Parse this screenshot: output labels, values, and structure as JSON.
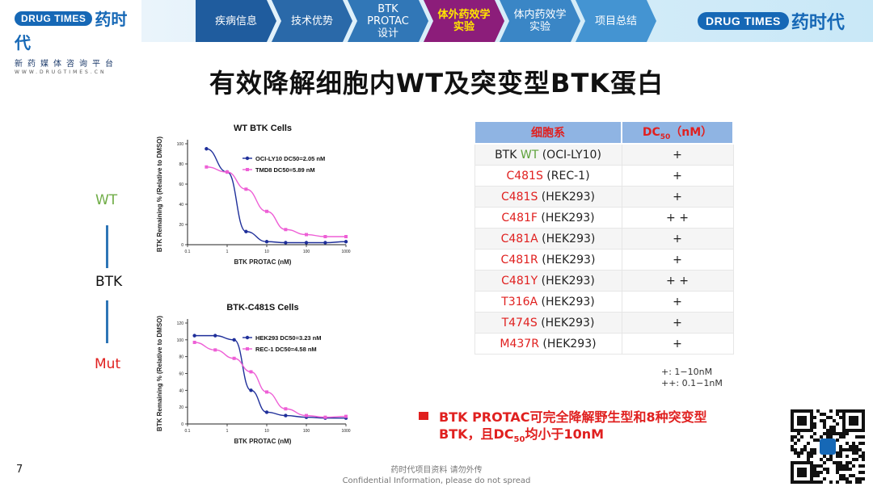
{
  "header": {
    "logo_left": {
      "badge": "DRUG TIMES",
      "name": "药时代",
      "subtitle": "新药媒体咨询平台",
      "url": "WWW.DRUGTIMES.CN"
    },
    "nav": [
      {
        "label": "疾病信息",
        "color": "#1f5c9e",
        "active": false
      },
      {
        "label": "技术优势",
        "color": "#2a69a9",
        "active": false
      },
      {
        "label": "BTK PROTAC\n设计",
        "color": "#3177b7",
        "active": false
      },
      {
        "label": "体外药效学\n实验",
        "color": "#8c1d7a",
        "active": true
      },
      {
        "label": "体内药效学\n实验",
        "color": "#3a86c6",
        "active": false
      },
      {
        "label": "项目总结",
        "color": "#4494d2",
        "active": false
      }
    ],
    "logo_right": {
      "badge": "DRUG TIMES",
      "name": "药时代"
    }
  },
  "slide": {
    "title": "有效降解细胞内WT及突变型BTK蛋白",
    "labels": {
      "wt": "WT",
      "btk": "BTK",
      "mut": "Mut"
    },
    "table": {
      "headers": [
        "细胞系",
        "DC50（nM）"
      ],
      "rows": [
        {
          "pre": "BTK ",
          "mut": "WT",
          "mut_color": "green",
          "line": " (OCI-LY10)",
          "value": "+"
        },
        {
          "pre": "",
          "mut": "C481S",
          "mut_color": "red",
          "line": " (REC-1)",
          "value": "+"
        },
        {
          "pre": "",
          "mut": "C481S",
          "mut_color": "red",
          "line": " (HEK293)",
          "value": "+"
        },
        {
          "pre": "",
          "mut": "C481F",
          "mut_color": "red",
          "line": " (HEK293)",
          "value": "+ +"
        },
        {
          "pre": "",
          "mut": "C481A",
          "mut_color": "red",
          "line": " (HEK293)",
          "value": "+"
        },
        {
          "pre": "",
          "mut": "C481R",
          "mut_color": "red",
          "line": " (HEK293)",
          "value": "+"
        },
        {
          "pre": "",
          "mut": "C481Y",
          "mut_color": "red",
          "line": " (HEK293)",
          "value": "+ +"
        },
        {
          "pre": "",
          "mut": "T316A",
          "mut_color": "red",
          "line": " (HEK293)",
          "value": "+"
        },
        {
          "pre": "",
          "mut": "T474S",
          "mut_color": "red",
          "line": " (HEK293)",
          "value": "+"
        },
        {
          "pre": "",
          "mut": "M437R",
          "mut_color": "red",
          "line": " (HEK293)",
          "value": "+"
        }
      ],
      "legend": [
        "+:  1−10nM",
        "++: 0.1−1nM"
      ]
    },
    "conclusion": {
      "line1": "BTK  PROTAC可完全降解野生型和8种突变型",
      "line2_pre": "BTK，且DC",
      "line2_sub": "50",
      "line2_post": "均小于10nM"
    },
    "page_number": "7",
    "footer": [
      "药时代项目资料 请勿外传",
      "Confidential  Information,  please  do  not  spread"
    ]
  },
  "chart_data": [
    {
      "type": "line",
      "title": "WT BTK Cells",
      "xlabel": "BTK PROTAC (nM)",
      "ylabel": "BTK Remaining % (Relative to DMSO)",
      "xscale": "log",
      "xlim": [
        0.1,
        1000
      ],
      "ylim": [
        0,
        100
      ],
      "xticks": [
        "0.1",
        "1",
        "10",
        "100",
        "1000"
      ],
      "yticks": [
        "0",
        "20",
        "40",
        "60",
        "80",
        "100"
      ],
      "legend_position": "top-right",
      "series": [
        {
          "name": "OCI-LY10 DC50=2.05 nM",
          "color": "#1f2f9a",
          "marker": "circle",
          "x": [
            0.3,
            1,
            3,
            10,
            30,
            100,
            300,
            1000
          ],
          "y": [
            95,
            72,
            13,
            3,
            2,
            2,
            2,
            3
          ]
        },
        {
          "name": "TMD8 DC50=5.89 nM",
          "color": "#ee5fd6",
          "marker": "square",
          "x": [
            0.3,
            1,
            3,
            10,
            30,
            100,
            300,
            1000
          ],
          "y": [
            77,
            72,
            55,
            33,
            15,
            10,
            8,
            8
          ]
        }
      ]
    },
    {
      "type": "line",
      "title": "BTK-C481S Cells",
      "xlabel": "BTK PROTAC (nM)",
      "ylabel": "BTK Remaining % (Relative to DMSO)",
      "xscale": "log",
      "xlim": [
        0.1,
        1000
      ],
      "ylim": [
        0,
        120
      ],
      "xticks": [
        "0.1",
        "1",
        "10",
        "100",
        "1000"
      ],
      "yticks": [
        "0",
        "20",
        "40",
        "60",
        "80",
        "100",
        "120"
      ],
      "legend_position": "top-right",
      "series": [
        {
          "name": "HEK293 DC50=3.23 nM",
          "color": "#1f2f9a",
          "marker": "circle",
          "x": [
            0.15,
            0.5,
            1.5,
            4,
            10,
            30,
            100,
            300,
            1000
          ],
          "y": [
            105,
            105,
            100,
            40,
            14,
            10,
            8,
            7,
            7
          ]
        },
        {
          "name": "REC-1 DC50=4.58 nM",
          "color": "#ee5fd6",
          "marker": "square",
          "x": [
            0.15,
            0.5,
            1.5,
            4,
            10,
            30,
            100,
            300,
            1000
          ],
          "y": [
            97,
            88,
            78,
            62,
            38,
            18,
            10,
            8,
            9
          ]
        }
      ]
    }
  ]
}
